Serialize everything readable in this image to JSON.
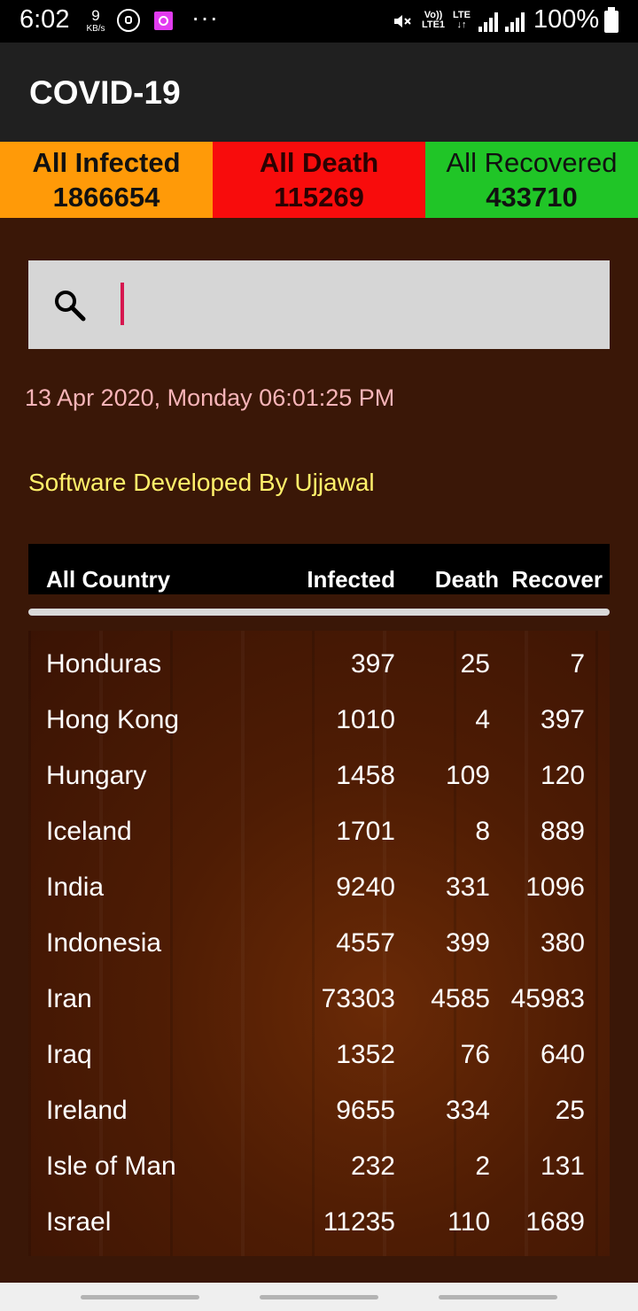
{
  "status_bar": {
    "time": "6:02",
    "speed_value": "9",
    "speed_unit": "KB/s",
    "more": "···",
    "volte": "Vo)) LTE1",
    "lte": "LTE ↓↑",
    "battery": "100%",
    "icons": [
      "whatsapp-icon",
      "app-notification-icon",
      "mute-icon",
      "signal-icon",
      "battery-icon"
    ]
  },
  "app_bar": {
    "title": "COVID-19"
  },
  "summary": {
    "infected": {
      "label": "All Infected",
      "value": "1866654",
      "color": "#ff9a08"
    },
    "death": {
      "label": "All Death",
      "value": "115269",
      "color": "#f80c0c"
    },
    "recovered": {
      "label": "All Recovered",
      "value": "433710",
      "color": "#20c527"
    }
  },
  "search": {
    "value": "",
    "placeholder": ""
  },
  "datetime": "13 Apr 2020, Monday 06:01:25 PM",
  "developer": "Software Developed By Ujjawal",
  "table": {
    "headers": {
      "country": "All Country",
      "infected": "Infected",
      "death": "Death",
      "recover": "Recover"
    },
    "rows": [
      {
        "country": "Honduras",
        "infected": "397",
        "death": "25",
        "recover": "7"
      },
      {
        "country": "Hong Kong",
        "infected": "1010",
        "death": "4",
        "recover": "397"
      },
      {
        "country": "Hungary",
        "infected": "1458",
        "death": "109",
        "recover": "120"
      },
      {
        "country": "Iceland",
        "infected": "1701",
        "death": "8",
        "recover": "889"
      },
      {
        "country": "India",
        "infected": "9240",
        "death": "331",
        "recover": "1096"
      },
      {
        "country": "Indonesia",
        "infected": "4557",
        "death": "399",
        "recover": "380"
      },
      {
        "country": "Iran",
        "infected": "73303",
        "death": "4585",
        "recover": "45983"
      },
      {
        "country": "Iraq",
        "infected": "1352",
        "death": "76",
        "recover": "640"
      },
      {
        "country": "Ireland",
        "infected": "9655",
        "death": "334",
        "recover": "25"
      },
      {
        "country": "Isle of Man",
        "infected": "232",
        "death": "2",
        "recover": "131"
      },
      {
        "country": "Israel",
        "infected": "11235",
        "death": "110",
        "recover": "1689"
      }
    ]
  }
}
